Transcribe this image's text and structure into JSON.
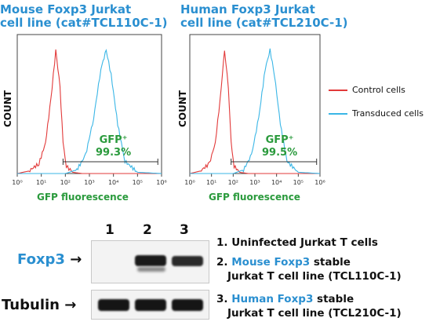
{
  "panels": [
    {
      "title_line1": "Mouse Foxp3 Jurkat",
      "title_line2": "cell line (cat#TCL110C-1)",
      "gate_label": "GFP⁺",
      "gate_value": "99.3%"
    },
    {
      "title_line1": "Human Foxp3 Jurkat",
      "title_line2": "cell line (cat#TCL210C-1)",
      "gate_label": "GFP⁺",
      "gate_value": "99.5%"
    }
  ],
  "axis": {
    "ylabel": "COUNT",
    "xlabel": "GFP fluorescence",
    "ticks": [
      "10⁰",
      "10¹",
      "10²",
      "10³",
      "10⁴",
      "10⁵",
      "10⁶"
    ]
  },
  "legend": {
    "control": "Control cells",
    "transduced": "Transduced cells"
  },
  "colors": {
    "control": "#e23a3a",
    "transduced": "#3ab6e6",
    "title": "#2a8fd0",
    "gfp": "#2a9a3c"
  },
  "chart_data": [
    {
      "type": "line",
      "title": "Mouse Foxp3 Jurkat cell line (cat#TCL110C-1)",
      "xlabel": "GFP fluorescence",
      "ylabel": "COUNT",
      "xscale": "log",
      "xlim": [
        1,
        1000000
      ],
      "series": [
        {
          "name": "Control cells",
          "x": [
            1,
            3,
            8,
            15,
            25,
            40,
            60,
            80,
            110,
            200,
            500,
            1000000
          ],
          "y": [
            0,
            2,
            8,
            25,
            60,
            100,
            70,
            25,
            6,
            1,
            0,
            0
          ]
        },
        {
          "name": "Transduced cells",
          "x": [
            1,
            100,
            300,
            700,
            1500,
            3000,
            5000,
            8000,
            15000,
            30000,
            100000,
            1000000
          ],
          "y": [
            0,
            0,
            3,
            15,
            45,
            85,
            100,
            80,
            40,
            10,
            1,
            0
          ]
        }
      ],
      "annotations": [
        "GFP⁺ 99.3%"
      ]
    },
    {
      "type": "line",
      "title": "Human Foxp3 Jurkat cell line (cat#TCL210C-1)",
      "xlabel": "GFP fluorescence",
      "ylabel": "COUNT",
      "xscale": "log",
      "xlim": [
        1,
        1000000
      ],
      "series": [
        {
          "name": "Control cells",
          "x": [
            1,
            3,
            8,
            15,
            25,
            40,
            60,
            80,
            110,
            200,
            500,
            1000000
          ],
          "y": [
            0,
            2,
            8,
            25,
            60,
            100,
            70,
            25,
            6,
            1,
            0,
            0
          ]
        },
        {
          "name": "Transduced cells",
          "x": [
            1,
            100,
            300,
            700,
            1500,
            3000,
            5000,
            8000,
            15000,
            30000,
            100000,
            1000000
          ],
          "y": [
            0,
            0,
            3,
            15,
            45,
            85,
            100,
            80,
            40,
            10,
            1,
            0
          ]
        }
      ],
      "annotations": [
        "GFP⁺ 99.5%"
      ]
    }
  ],
  "western": {
    "lanes": [
      "1",
      "2",
      "3"
    ],
    "foxp3_label": "Foxp3",
    "tubulin_label": "Tubulin",
    "arrow": "→",
    "desc1": "1. Uninfected Jurkat T cells",
    "desc2_num": "2. ",
    "desc2_blue": "Mouse Foxp3",
    "desc2_rest": " stable",
    "desc2_line2": "Jurkat T cell line (TCL110C-1)",
    "desc3_num": "3. ",
    "desc3_blue": "Human Foxp3",
    "desc3_rest": " stable",
    "desc3_line2": "Jurkat T cell line (TCL210C-1)"
  }
}
